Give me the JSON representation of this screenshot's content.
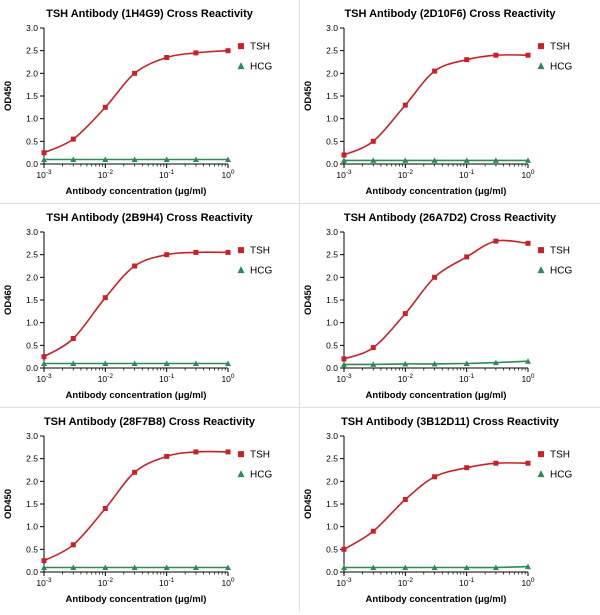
{
  "page": {
    "background": "#ffffff"
  },
  "colors": {
    "tsh": "#cc2027",
    "hcg": "#2e8b57",
    "axis": "#000000"
  },
  "chart_data": [
    {
      "type": "line",
      "title": "TSH Antibody (1H4G9) Cross Reactivity",
      "xlabel": "Antibody concentration (μg/ml)",
      "ylabel": "OD450",
      "xscale": "log",
      "xlim": [
        0.001,
        1
      ],
      "ylim": [
        0,
        3
      ],
      "yticks": [
        0,
        0.5,
        1.0,
        1.5,
        2.0,
        2.5,
        3.0
      ],
      "xtick_exponents": [
        -3,
        -2,
        -1,
        0
      ],
      "legend_position": "right",
      "x": [
        0.001,
        0.003,
        0.01,
        0.03,
        0.1,
        0.3,
        1
      ],
      "series": [
        {
          "name": "TSH",
          "marker": "square",
          "color": "#cc2027",
          "values": [
            0.25,
            0.55,
            1.25,
            2.0,
            2.35,
            2.45,
            2.5
          ]
        },
        {
          "name": "HCG",
          "marker": "triangle",
          "color": "#2e8b57",
          "values": [
            0.1,
            0.1,
            0.1,
            0.1,
            0.1,
            0.1,
            0.1
          ]
        }
      ]
    },
    {
      "type": "line",
      "title": "TSH Antibody (2D10F6) Cross Reactivity",
      "xlabel": "Antibody concentration (μg/ml)",
      "ylabel": "OD450",
      "xscale": "log",
      "xlim": [
        0.001,
        1
      ],
      "ylim": [
        0,
        3
      ],
      "yticks": [
        0,
        0.5,
        1.0,
        1.5,
        2.0,
        2.5,
        3.0
      ],
      "xtick_exponents": [
        -3,
        -2,
        -1,
        0
      ],
      "legend_position": "right",
      "x": [
        0.001,
        0.003,
        0.01,
        0.03,
        0.1,
        0.3,
        1
      ],
      "series": [
        {
          "name": "TSH",
          "marker": "square",
          "color": "#cc2027",
          "values": [
            0.2,
            0.5,
            1.3,
            2.05,
            2.3,
            2.4,
            2.4
          ]
        },
        {
          "name": "HCG",
          "marker": "triangle",
          "color": "#2e8b57",
          "values": [
            0.08,
            0.08,
            0.08,
            0.08,
            0.08,
            0.08,
            0.08
          ]
        }
      ]
    },
    {
      "type": "line",
      "title": "TSH Antibody (2B9H4) Cross Reactivity",
      "xlabel": "Antibody concentration (μg/ml)",
      "ylabel": "OD460",
      "xscale": "log",
      "xlim": [
        0.001,
        1
      ],
      "ylim": [
        0,
        3
      ],
      "yticks": [
        0,
        0.5,
        1.0,
        1.5,
        2.0,
        2.5,
        3.0
      ],
      "xtick_exponents": [
        -3,
        -2,
        -1,
        0
      ],
      "legend_position": "right",
      "x": [
        0.001,
        0.003,
        0.01,
        0.03,
        0.1,
        0.3,
        1
      ],
      "series": [
        {
          "name": "TSH",
          "marker": "square",
          "color": "#cc2027",
          "values": [
            0.25,
            0.65,
            1.55,
            2.25,
            2.5,
            2.55,
            2.55
          ]
        },
        {
          "name": "HCG",
          "marker": "triangle",
          "color": "#2e8b57",
          "values": [
            0.1,
            0.1,
            0.1,
            0.1,
            0.1,
            0.1,
            0.1
          ]
        }
      ]
    },
    {
      "type": "line",
      "title": "TSH Antibody (26A7D2) Cross Reactivity",
      "xlabel": "Antibody concentration (μg/ml)",
      "ylabel": "OD450",
      "xscale": "log",
      "xlim": [
        0.001,
        1
      ],
      "ylim": [
        0,
        3
      ],
      "yticks": [
        0,
        0.5,
        1.0,
        1.5,
        2.0,
        2.5,
        3.0
      ],
      "xtick_exponents": [
        -3,
        -2,
        -1,
        0
      ],
      "legend_position": "right",
      "x": [
        0.001,
        0.003,
        0.01,
        0.03,
        0.1,
        0.3,
        1
      ],
      "series": [
        {
          "name": "TSH",
          "marker": "square",
          "color": "#cc2027",
          "values": [
            0.2,
            0.45,
            1.2,
            2.0,
            2.45,
            2.8,
            2.75
          ]
        },
        {
          "name": "HCG",
          "marker": "triangle",
          "color": "#2e8b57",
          "values": [
            0.08,
            0.08,
            0.09,
            0.09,
            0.1,
            0.12,
            0.15
          ]
        }
      ]
    },
    {
      "type": "line",
      "title": "TSH Antibody (28F7B8) Cross Reactivity",
      "xlabel": "Antibody concentration (μg/ml)",
      "ylabel": "OD450",
      "xscale": "log",
      "xlim": [
        0.001,
        1
      ],
      "ylim": [
        0,
        3
      ],
      "yticks": [
        0,
        0.5,
        1.0,
        1.5,
        2.0,
        2.5,
        3.0
      ],
      "xtick_exponents": [
        -3,
        -2,
        -1,
        0
      ],
      "legend_position": "right",
      "x": [
        0.001,
        0.003,
        0.01,
        0.03,
        0.1,
        0.3,
        1
      ],
      "series": [
        {
          "name": "TSH",
          "marker": "square",
          "color": "#cc2027",
          "values": [
            0.25,
            0.6,
            1.4,
            2.2,
            2.55,
            2.65,
            2.65
          ]
        },
        {
          "name": "HCG",
          "marker": "triangle",
          "color": "#2e8b57",
          "values": [
            0.1,
            0.1,
            0.1,
            0.1,
            0.1,
            0.1,
            0.1
          ]
        }
      ]
    },
    {
      "type": "line",
      "title": "TSH Antibody (3B12D11) Cross Reactivity",
      "xlabel": "Antibody concentration (μg/ml)",
      "ylabel": "OD450",
      "xscale": "log",
      "xlim": [
        0.001,
        1
      ],
      "ylim": [
        0,
        3
      ],
      "yticks": [
        0,
        0.5,
        1.0,
        1.5,
        2.0,
        2.5,
        3.0
      ],
      "xtick_exponents": [
        -3,
        -2,
        -1,
        0
      ],
      "legend_position": "right",
      "x": [
        0.001,
        0.003,
        0.01,
        0.03,
        0.1,
        0.3,
        1
      ],
      "series": [
        {
          "name": "TSH",
          "marker": "square",
          "color": "#cc2027",
          "values": [
            0.5,
            0.9,
            1.6,
            2.1,
            2.3,
            2.4,
            2.4
          ]
        },
        {
          "name": "HCG",
          "marker": "triangle",
          "color": "#2e8b57",
          "values": [
            0.1,
            0.1,
            0.1,
            0.1,
            0.1,
            0.1,
            0.12
          ]
        }
      ]
    }
  ]
}
